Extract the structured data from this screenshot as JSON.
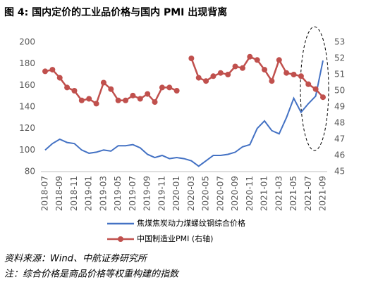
{
  "chart_data": {
    "type": "line",
    "title": "图 4: 国内定价的工业品价格与国内 PMI 出现背离",
    "categories": [
      "2018-07",
      null,
      "2018-09",
      null,
      "2018-11",
      null,
      "2019-01",
      null,
      "2019-03",
      null,
      "2019-05",
      null,
      "2019-07",
      null,
      "2019-09",
      null,
      "2019-11",
      null,
      "2020-01",
      null,
      "2020-03",
      null,
      "2020-05",
      null,
      "2020-07",
      null,
      "2020-09",
      null,
      "2020-11",
      null,
      "2021-01",
      null,
      "2021-03",
      null,
      "2021-05",
      null,
      "2021-07",
      null,
      "2021-09"
    ],
    "series": [
      {
        "name": "焦煤焦炭动力煤螺纹钢综合价格",
        "color": "#4472c4",
        "values": [
          100,
          106,
          110,
          107,
          106,
          100,
          97,
          98,
          100,
          99,
          104,
          104,
          105,
          102,
          96,
          93,
          95,
          92,
          93,
          92,
          90,
          85,
          90,
          95,
          95,
          96,
          98,
          103,
          105,
          120,
          127,
          118,
          115,
          130,
          148,
          135,
          143,
          150,
          183
        ]
      },
      {
        "name": "中国制造业PMI (右轴)",
        "color": "#c0504d",
        "axis": "y2",
        "values": [
          51.2,
          51.3,
          50.8,
          50.2,
          50.0,
          49.4,
          49.5,
          49.2,
          50.5,
          50.1,
          49.4,
          49.4,
          49.7,
          49.5,
          49.8,
          49.3,
          50.2,
          50.2,
          50.0,
          null,
          52.0,
          50.8,
          50.6,
          50.9,
          51.1,
          51.0,
          51.5,
          51.4,
          52.1,
          51.9,
          51.3,
          50.6,
          51.9,
          51.1,
          51.0,
          50.9,
          50.4,
          50.1,
          49.6
        ]
      }
    ],
    "ylim": [
      80,
      200
    ],
    "yticks": [
      80,
      100,
      120,
      140,
      160,
      180,
      200
    ],
    "y2lim": [
      45,
      53
    ],
    "y2ticks": [
      45,
      46,
      47,
      48,
      49,
      50,
      51,
      52,
      53
    ],
    "grid": false,
    "source": "资料来源：Wind、中航证券研究所",
    "note": "注：综合价格是商品价格等权重构建的指数"
  }
}
